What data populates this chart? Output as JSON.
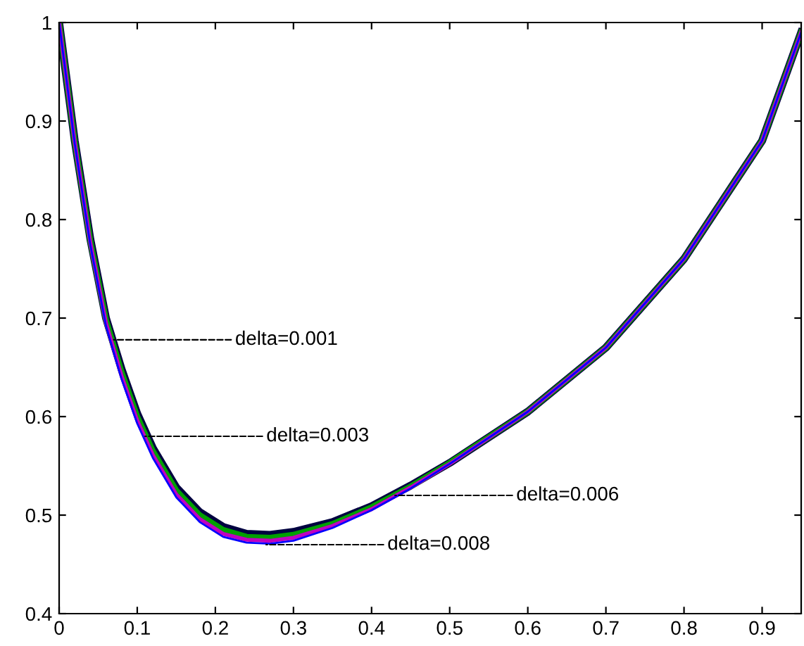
{
  "chart_data": {
    "type": "line",
    "x": [
      0,
      0.02,
      0.04,
      0.06,
      0.08,
      0.1,
      0.12,
      0.15,
      0.18,
      0.21,
      0.24,
      0.27,
      0.3,
      0.35,
      0.4,
      0.45,
      0.5,
      0.6,
      0.7,
      0.8,
      0.9,
      0.95
    ],
    "series": [
      {
        "color": "#000040",
        "values": [
          1.0,
          0.88,
          0.78,
          0.7,
          0.648,
          0.603,
          0.568,
          0.528,
          0.503,
          0.488,
          0.481,
          0.48,
          0.483,
          0.493,
          0.509,
          0.53,
          0.553,
          0.605,
          0.67,
          0.76,
          0.88,
          0.99
        ]
      },
      {
        "color": "#00a000",
        "values": [
          1.0,
          0.879,
          0.778,
          0.698,
          0.645,
          0.6,
          0.565,
          0.525,
          0.5,
          0.485,
          0.478,
          0.477,
          0.48,
          0.491,
          0.508,
          0.529,
          0.553,
          0.605,
          0.67,
          0.76,
          0.88,
          0.99
        ]
      },
      {
        "color": "#c000c0",
        "values": [
          1.0,
          0.878,
          0.776,
          0.695,
          0.641,
          0.596,
          0.561,
          0.521,
          0.496,
          0.481,
          0.475,
          0.474,
          0.477,
          0.489,
          0.506,
          0.528,
          0.552,
          0.605,
          0.67,
          0.76,
          0.88,
          0.99
        ]
      },
      {
        "color": "#0000ff",
        "values": [
          1.0,
          0.877,
          0.774,
          0.692,
          0.638,
          0.593,
          0.558,
          0.518,
          0.493,
          0.478,
          0.472,
          0.471,
          0.474,
          0.487,
          0.505,
          0.527,
          0.552,
          0.605,
          0.67,
          0.76,
          0.88,
          0.99
        ]
      }
    ],
    "xlim": [
      0,
      0.95
    ],
    "ylim": [
      0.4,
      1
    ],
    "xticks": [
      0,
      0.1,
      0.2,
      0.3,
      0.4,
      0.5,
      0.6,
      0.7,
      0.8,
      0.9
    ],
    "yticks": [
      0.4,
      0.5,
      0.6,
      0.7,
      0.8,
      0.9,
      1
    ],
    "annotations": [
      {
        "text": "delta=0.001",
        "x": 0.07,
        "y": 0.678
      },
      {
        "text": "delta=0.003",
        "x": 0.11,
        "y": 0.58
      },
      {
        "text": "delta=0.006",
        "x": 0.43,
        "y": 0.52
      },
      {
        "text": "delta=0.008",
        "x": 0.265,
        "y": 0.47
      }
    ],
    "grid": false,
    "legend": false
  }
}
